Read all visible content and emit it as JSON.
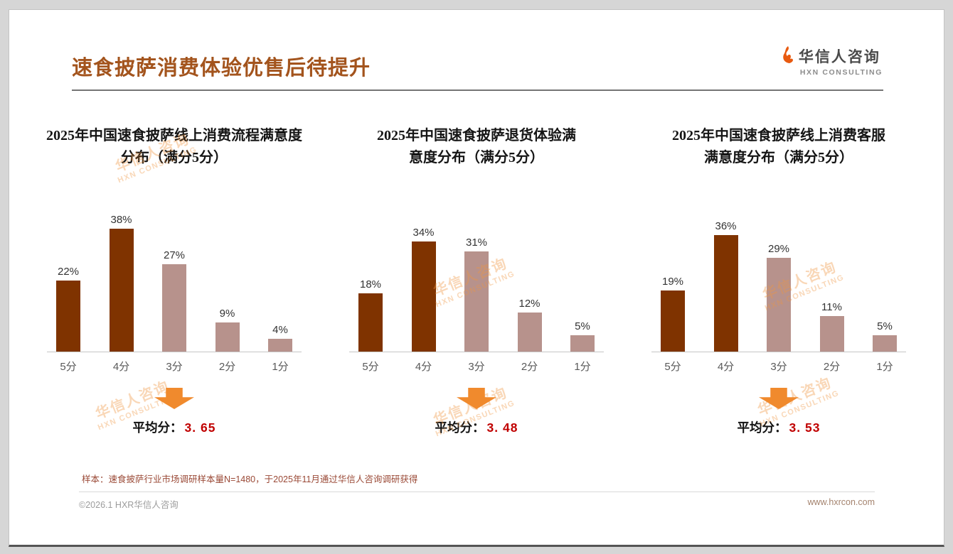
{
  "page": {
    "title": "速食披萨消费体验优售后待提升",
    "logo": {
      "name": "华信人咨询",
      "sub": "HXN CONSULTING"
    },
    "watermark": {
      "line1": "华信人咨询",
      "line2": "HXN CONSULTING"
    },
    "footnote": "样本：速食披萨行业市场调研样本量N=1480，于2025年11月通过华信人咨询调研获得",
    "footer_left": "©2026.1 HXR华信人咨询",
    "footer_right": "www.hxrcon.com"
  },
  "colors": {
    "title": "#a3541d",
    "bar_dark": "#7f3300",
    "bar_light": "#b7928c",
    "arrow": "#f08a2d",
    "average_number": "#c00000"
  },
  "chart_data": [
    {
      "type": "bar",
      "title": "2025年中国速食披萨线上消费流程满意度分布（满分5分）",
      "title_lines": [
        "2025年中国速食披萨线上消费流程满意度",
        "分布（满分5分）"
      ],
      "categories": [
        "5分",
        "4分",
        "3分",
        "2分",
        "1分"
      ],
      "values": [
        22,
        38,
        27,
        9,
        4
      ],
      "value_labels": [
        "22%",
        "38%",
        "27%",
        "9%",
        "4%"
      ],
      "bar_roles": [
        "dark",
        "dark",
        "light",
        "light",
        "light"
      ],
      "average_prefix": "平均分：",
      "average_value": "3. 65",
      "ylim": [
        0,
        40
      ],
      "grid": false,
      "legend": false
    },
    {
      "type": "bar",
      "title": "2025年中国速食披萨退货体验满意度分布（满分5分）",
      "title_lines": [
        "2025年中国速食披萨退货体验满",
        "意度分布（满分5分）"
      ],
      "categories": [
        "5分",
        "4分",
        "3分",
        "2分",
        "1分"
      ],
      "values": [
        18,
        34,
        31,
        12,
        5
      ],
      "value_labels": [
        "18%",
        "34%",
        "31%",
        "12%",
        "5%"
      ],
      "bar_roles": [
        "dark",
        "dark",
        "light",
        "light",
        "light"
      ],
      "average_prefix": "平均分：",
      "average_value": "3. 48",
      "ylim": [
        0,
        40
      ],
      "grid": false,
      "legend": false
    },
    {
      "type": "bar",
      "title": "2025年中国速食披萨线上消费客服满意度分布（满分5分）",
      "title_lines": [
        "2025年中国速食披萨线上消费客服",
        "满意度分布（满分5分）"
      ],
      "categories": [
        "5分",
        "4分",
        "3分",
        "2分",
        "1分"
      ],
      "values": [
        19,
        36,
        29,
        11,
        5
      ],
      "value_labels": [
        "19%",
        "36%",
        "29%",
        "11%",
        "5%"
      ],
      "bar_roles": [
        "dark",
        "dark",
        "light",
        "light",
        "light"
      ],
      "average_prefix": "平均分：",
      "average_value": "3. 53",
      "ylim": [
        0,
        40
      ],
      "grid": false,
      "legend": false
    }
  ]
}
